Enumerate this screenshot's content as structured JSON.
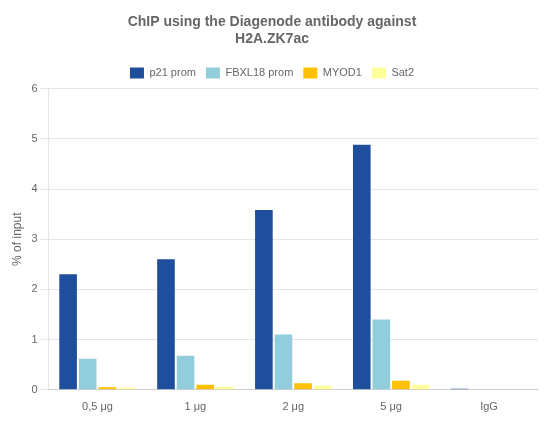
{
  "chart_data": {
    "type": "bar",
    "title": [
      "ChIP using the Diagenode antibody against",
      "H2A.ZK7ac"
    ],
    "ylabel": "% of input",
    "categories": [
      "0,5 μg",
      "1 μg",
      "2 μg",
      "5 μg",
      "IgG"
    ],
    "series": [
      {
        "name": "p21 prom",
        "color": "#1F4E9C",
        "values": [
          2.3,
          2.6,
          3.58,
          4.88,
          0.02
        ]
      },
      {
        "name": "FBXL18 prom",
        "color": "#92CDDC",
        "values": [
          0.62,
          0.68,
          1.1,
          1.4,
          0.01
        ]
      },
      {
        "name": "MYOD1",
        "color": "#FFC000",
        "values": [
          0.05,
          0.1,
          0.13,
          0.18,
          0.01
        ]
      },
      {
        "name": "Sat2",
        "color": "#FFFF99",
        "values": [
          0.04,
          0.06,
          0.08,
          0.1,
          0.01
        ]
      }
    ],
    "ylim": [
      0,
      6
    ],
    "yticks": [
      0,
      1,
      2,
      3,
      4,
      5,
      6
    ],
    "grid": true,
    "legend": "top"
  }
}
